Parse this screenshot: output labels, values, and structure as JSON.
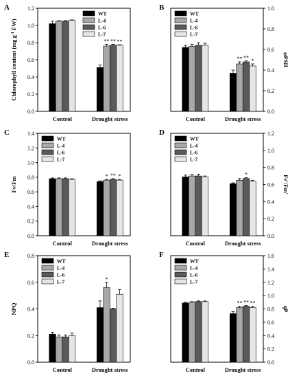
{
  "chart_data": [
    {
      "panel": "A",
      "type": "bar",
      "axis_side": "left",
      "ylabel_parts": [
        "Chlorophyll content (mg g",
        "-1",
        " FW)"
      ],
      "ylim": [
        0,
        1.2
      ],
      "yticks": [
        "0.0",
        "0.2",
        "0.4",
        "0.6",
        "0.8",
        "1.0",
        "1.2"
      ],
      "categories": [
        "Control",
        "Drought stress"
      ],
      "legend": "top-center",
      "series": [
        {
          "name": "WT",
          "color": "#000000",
          "values": [
            1.02,
            0.51
          ],
          "errors": [
            0.03,
            0.03
          ],
          "sig": [
            "",
            ""
          ]
        },
        {
          "name": "L-4",
          "color": "#a8a8a8",
          "values": [
            1.05,
            0.76
          ],
          "errors": [
            0.005,
            0.02
          ],
          "sig": [
            "",
            "**"
          ]
        },
        {
          "name": "L-6",
          "color": "#5a5a5a",
          "values": [
            1.05,
            0.77
          ],
          "errors": [
            0.005,
            0.01
          ],
          "sig": [
            "",
            "**"
          ]
        },
        {
          "name": "L-7",
          "color": "#e6e6e6",
          "values": [
            1.06,
            0.77
          ],
          "errors": [
            0.005,
            0.005
          ],
          "sig": [
            "",
            "**"
          ]
        }
      ]
    },
    {
      "panel": "B",
      "type": "bar",
      "axis_side": "right",
      "ylabel_parts": [
        "φPSII"
      ],
      "ylim": [
        0,
        1.0
      ],
      "yticks": [
        "0.0",
        "0.2",
        "0.4",
        "0.6",
        "0.8",
        "1.0"
      ],
      "categories": [
        "Control",
        "Drought stress"
      ],
      "legend": "top-left",
      "series": [
        {
          "name": "WT",
          "color": "#000000",
          "values": [
            0.62,
            0.37
          ],
          "errors": [
            0.02,
            0.03
          ],
          "sig": [
            "",
            ""
          ]
        },
        {
          "name": "L-4",
          "color": "#a8a8a8",
          "values": [
            0.63,
            0.46
          ],
          "errors": [
            0.02,
            0.02
          ],
          "sig": [
            "",
            "**"
          ]
        },
        {
          "name": "L-6",
          "color": "#5a5a5a",
          "values": [
            0.64,
            0.48
          ],
          "errors": [
            0.025,
            0.01
          ],
          "sig": [
            "",
            "**"
          ]
        },
        {
          "name": "L-7",
          "color": "#e6e6e6",
          "values": [
            0.64,
            0.44
          ],
          "errors": [
            0.02,
            0.02
          ],
          "sig": [
            "",
            "*"
          ]
        }
      ]
    },
    {
      "panel": "C",
      "type": "bar",
      "axis_side": "left",
      "ylabel_parts": [
        "Fv/Fm"
      ],
      "ylim": [
        0,
        1.4
      ],
      "yticks": [
        "0.0",
        "0.2",
        "0.4",
        "0.6",
        "0.8",
        "1.0",
        "1.2",
        "1.4"
      ],
      "categories": [
        "Control",
        "Drought stress"
      ],
      "legend": "top-left",
      "series": [
        {
          "name": "WT",
          "color": "#000000",
          "values": [
            0.78,
            0.74
          ],
          "errors": [
            0.01,
            0.01
          ],
          "sig": [
            "",
            ""
          ]
        },
        {
          "name": "L-4",
          "color": "#a8a8a8",
          "values": [
            0.78,
            0.76
          ],
          "errors": [
            0.01,
            0.01
          ],
          "sig": [
            "",
            "*"
          ]
        },
        {
          "name": "L-6",
          "color": "#5a5a5a",
          "values": [
            0.78,
            0.77
          ],
          "errors": [
            0.01,
            0.01
          ],
          "sig": [
            "",
            "**"
          ]
        },
        {
          "name": "L-7",
          "color": "#e6e6e6",
          "values": [
            0.77,
            0.76
          ],
          "errors": [
            0.01,
            0.01
          ],
          "sig": [
            "",
            "*"
          ]
        }
      ]
    },
    {
      "panel": "D",
      "type": "bar",
      "axis_side": "right",
      "ylabel_parts": [
        "Fv'/Fm'"
      ],
      "ylim": [
        0,
        1.2
      ],
      "yticks": [
        "0.0",
        "0.2",
        "0.4",
        "0.6",
        "0.8",
        "1.0",
        "1.2"
      ],
      "categories": [
        "Control",
        "Drought stress"
      ],
      "legend": "top-left",
      "series": [
        {
          "name": "WT",
          "color": "#000000",
          "values": [
            0.69,
            0.61
          ],
          "errors": [
            0.02,
            0.01
          ],
          "sig": [
            "",
            ""
          ]
        },
        {
          "name": "L-4",
          "color": "#a8a8a8",
          "values": [
            0.7,
            0.65
          ],
          "errors": [
            0.02,
            0.02
          ],
          "sig": [
            "",
            ""
          ]
        },
        {
          "name": "L-6",
          "color": "#5a5a5a",
          "values": [
            0.7,
            0.67
          ],
          "errors": [
            0.02,
            0.01
          ],
          "sig": [
            "",
            "*"
          ]
        },
        {
          "name": "L-7",
          "color": "#e6e6e6",
          "values": [
            0.69,
            0.64
          ],
          "errors": [
            0.01,
            0.01
          ],
          "sig": [
            "",
            ""
          ]
        }
      ]
    },
    {
      "panel": "E",
      "type": "bar",
      "axis_side": "left",
      "ylabel_parts": [
        "NPQ"
      ],
      "ylim": [
        0,
        0.8
      ],
      "yticks": [
        "0.0",
        "0.2",
        "0.4",
        "0.6",
        "0.8"
      ],
      "categories": [
        "Control",
        "Drought stress"
      ],
      "legend": "top-left",
      "series": [
        {
          "name": "WT",
          "color": "#000000",
          "values": [
            0.21,
            0.41
          ],
          "errors": [
            0.015,
            0.05
          ],
          "sig": [
            "",
            ""
          ]
        },
        {
          "name": "L-4",
          "color": "#a8a8a8",
          "values": [
            0.19,
            0.56
          ],
          "errors": [
            0.015,
            0.04
          ],
          "sig": [
            "",
            "*"
          ]
        },
        {
          "name": "L-6",
          "color": "#5a5a5a",
          "values": [
            0.19,
            0.4
          ],
          "errors": [
            0.015,
            0.005
          ],
          "sig": [
            "",
            ""
          ]
        },
        {
          "name": "L-7",
          "color": "#e6e6e6",
          "values": [
            0.2,
            0.51
          ],
          "errors": [
            0.02,
            0.035
          ],
          "sig": [
            "",
            ""
          ]
        }
      ]
    },
    {
      "panel": "F",
      "type": "bar",
      "axis_side": "right",
      "ylabel_parts": [
        "qP"
      ],
      "ylim": [
        0,
        1.6
      ],
      "yticks": [
        "0.0",
        "0.2",
        "0.4",
        "0.6",
        "0.8",
        "1.0",
        "1.2",
        "1.4",
        "1.6"
      ],
      "categories": [
        "Control",
        "Drought stress"
      ],
      "legend": "top-left",
      "series": [
        {
          "name": "WT",
          "color": "#000000",
          "values": [
            0.89,
            0.73
          ],
          "errors": [
            0.01,
            0.03
          ],
          "sig": [
            "",
            ""
          ]
        },
        {
          "name": "L-4",
          "color": "#a8a8a8",
          "values": [
            0.9,
            0.82
          ],
          "errors": [
            0.01,
            0.02
          ],
          "sig": [
            "",
            "**"
          ]
        },
        {
          "name": "L-6",
          "color": "#5a5a5a",
          "values": [
            0.91,
            0.84
          ],
          "errors": [
            0.01,
            0.01
          ],
          "sig": [
            "",
            "**"
          ]
        },
        {
          "name": "L-7",
          "color": "#e6e6e6",
          "values": [
            0.91,
            0.82
          ],
          "errors": [
            0.01,
            0.02
          ],
          "sig": [
            "",
            "**"
          ]
        }
      ]
    }
  ]
}
